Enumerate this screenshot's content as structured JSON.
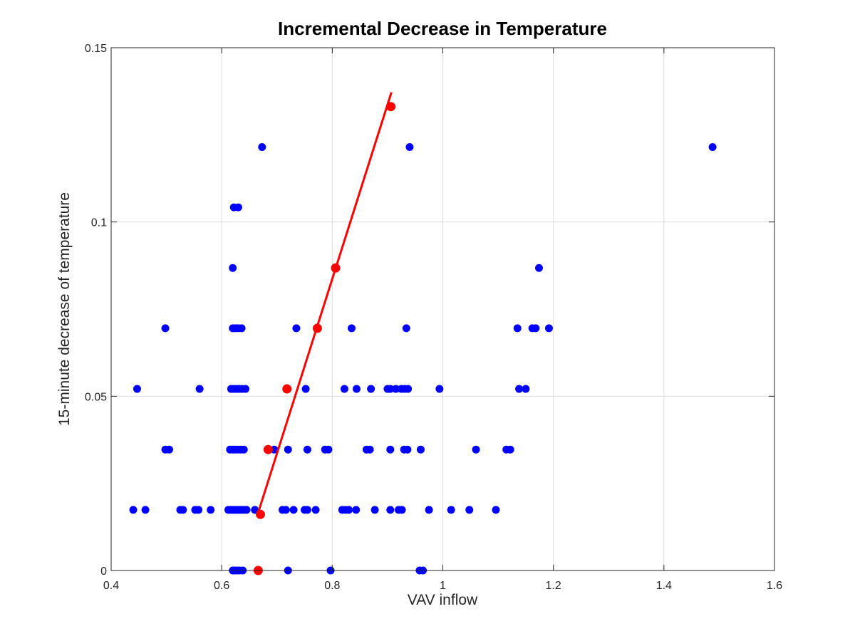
{
  "chart_data": {
    "type": "scatter",
    "title": "Incremental Decrease in Temperature",
    "xlabel": "VAV inflow",
    "ylabel": "15-minute decrease of temperature",
    "xlim": [
      0.4,
      1.6
    ],
    "ylim": [
      0,
      0.15
    ],
    "xticks": [
      "0.4",
      "0.6",
      "0.8",
      "1",
      "1.2",
      "1.4",
      "1.6"
    ],
    "yticks": [
      "0",
      "0.05",
      "0.1",
      "0.15"
    ],
    "grid": true,
    "colors": {
      "blue": "#0000ff",
      "red": "#ff0000",
      "grid": "#dcdcdc",
      "axis": "#262626"
    },
    "series": [
      {
        "color": "#0000ff",
        "points": [
          [
            0.62,
            0
          ],
          [
            0.623,
            0
          ],
          [
            0.627,
            0
          ],
          [
            0.632,
            0
          ],
          [
            0.638,
            0
          ],
          [
            0.72,
            0
          ],
          [
            0.797,
            0
          ],
          [
            0.958,
            0
          ],
          [
            0.964,
            0
          ],
          [
            0.44,
            0.0174
          ],
          [
            0.462,
            0.0174
          ],
          [
            0.525,
            0.0174
          ],
          [
            0.53,
            0.0174
          ],
          [
            0.552,
            0.0174
          ],
          [
            0.558,
            0.0174
          ],
          [
            0.58,
            0.0174
          ],
          [
            0.612,
            0.0174
          ],
          [
            0.616,
            0.0174
          ],
          [
            0.62,
            0.0174
          ],
          [
            0.624,
            0.0174
          ],
          [
            0.628,
            0.0174
          ],
          [
            0.632,
            0.0174
          ],
          [
            0.636,
            0.0174
          ],
          [
            0.64,
            0.0174
          ],
          [
            0.645,
            0.0174
          ],
          [
            0.66,
            0.0174
          ],
          [
            0.71,
            0.0174
          ],
          [
            0.716,
            0.0174
          ],
          [
            0.73,
            0.0174
          ],
          [
            0.75,
            0.0174
          ],
          [
            0.755,
            0.0174
          ],
          [
            0.77,
            0.0174
          ],
          [
            0.818,
            0.0174
          ],
          [
            0.824,
            0.0174
          ],
          [
            0.83,
            0.0174
          ],
          [
            0.843,
            0.0174
          ],
          [
            0.877,
            0.0174
          ],
          [
            0.905,
            0.0174
          ],
          [
            0.92,
            0.0174
          ],
          [
            0.926,
            0.0174
          ],
          [
            0.975,
            0.0174
          ],
          [
            1.015,
            0.0174
          ],
          [
            1.048,
            0.0174
          ],
          [
            1.096,
            0.0174
          ],
          [
            0.498,
            0.0347
          ],
          [
            0.505,
            0.0347
          ],
          [
            0.615,
            0.0347
          ],
          [
            0.62,
            0.0347
          ],
          [
            0.625,
            0.0347
          ],
          [
            0.63,
            0.0347
          ],
          [
            0.635,
            0.0347
          ],
          [
            0.64,
            0.0347
          ],
          [
            0.695,
            0.0347
          ],
          [
            0.72,
            0.0347
          ],
          [
            0.755,
            0.0347
          ],
          [
            0.787,
            0.0347
          ],
          [
            0.793,
            0.0347
          ],
          [
            0.862,
            0.0347
          ],
          [
            0.868,
            0.0347
          ],
          [
            0.905,
            0.0347
          ],
          [
            0.93,
            0.0347
          ],
          [
            0.936,
            0.0347
          ],
          [
            0.96,
            0.0347
          ],
          [
            1.06,
            0.0347
          ],
          [
            1.115,
            0.0347
          ],
          [
            1.122,
            0.0347
          ],
          [
            0.447,
            0.0521
          ],
          [
            0.56,
            0.0521
          ],
          [
            0.617,
            0.0521
          ],
          [
            0.622,
            0.0521
          ],
          [
            0.627,
            0.0521
          ],
          [
            0.632,
            0.0521
          ],
          [
            0.637,
            0.0521
          ],
          [
            0.643,
            0.0521
          ],
          [
            0.752,
            0.0521
          ],
          [
            0.822,
            0.0521
          ],
          [
            0.844,
            0.0521
          ],
          [
            0.87,
            0.0521
          ],
          [
            0.9,
            0.0521
          ],
          [
            0.905,
            0.0521
          ],
          [
            0.915,
            0.0521
          ],
          [
            0.925,
            0.0521
          ],
          [
            0.931,
            0.0521
          ],
          [
            0.937,
            0.0521
          ],
          [
            0.994,
            0.0521
          ],
          [
            1.138,
            0.0521
          ],
          [
            1.15,
            0.0521
          ],
          [
            0.498,
            0.0695
          ],
          [
            0.62,
            0.0695
          ],
          [
            0.625,
            0.0695
          ],
          [
            0.63,
            0.0695
          ],
          [
            0.636,
            0.0695
          ],
          [
            0.735,
            0.0695
          ],
          [
            0.835,
            0.0695
          ],
          [
            0.934,
            0.0695
          ],
          [
            1.135,
            0.0695
          ],
          [
            1.162,
            0.0695
          ],
          [
            1.168,
            0.0695
          ],
          [
            1.192,
            0.0695
          ],
          [
            0.62,
            0.0868
          ],
          [
            1.174,
            0.0868
          ],
          [
            0.622,
            0.1042
          ],
          [
            0.63,
            0.1042
          ],
          [
            0.673,
            0.1215
          ],
          [
            0.94,
            0.1215
          ],
          [
            1.488,
            0.1215
          ]
        ]
      },
      {
        "color": "#ff0000",
        "points": [
          [
            0.666,
            0
          ],
          [
            0.67,
            0.0161
          ],
          [
            0.684,
            0.0347
          ],
          [
            0.718,
            0.0521
          ],
          [
            0.773,
            0.0695
          ],
          [
            0.806,
            0.0868
          ],
          [
            0.906,
            0.1331
          ]
        ]
      }
    ],
    "fit_line": {
      "color": "#ff0000",
      "x": [
        0.665,
        0.907
      ],
      "y": [
        0.0161,
        0.1372
      ]
    }
  }
}
